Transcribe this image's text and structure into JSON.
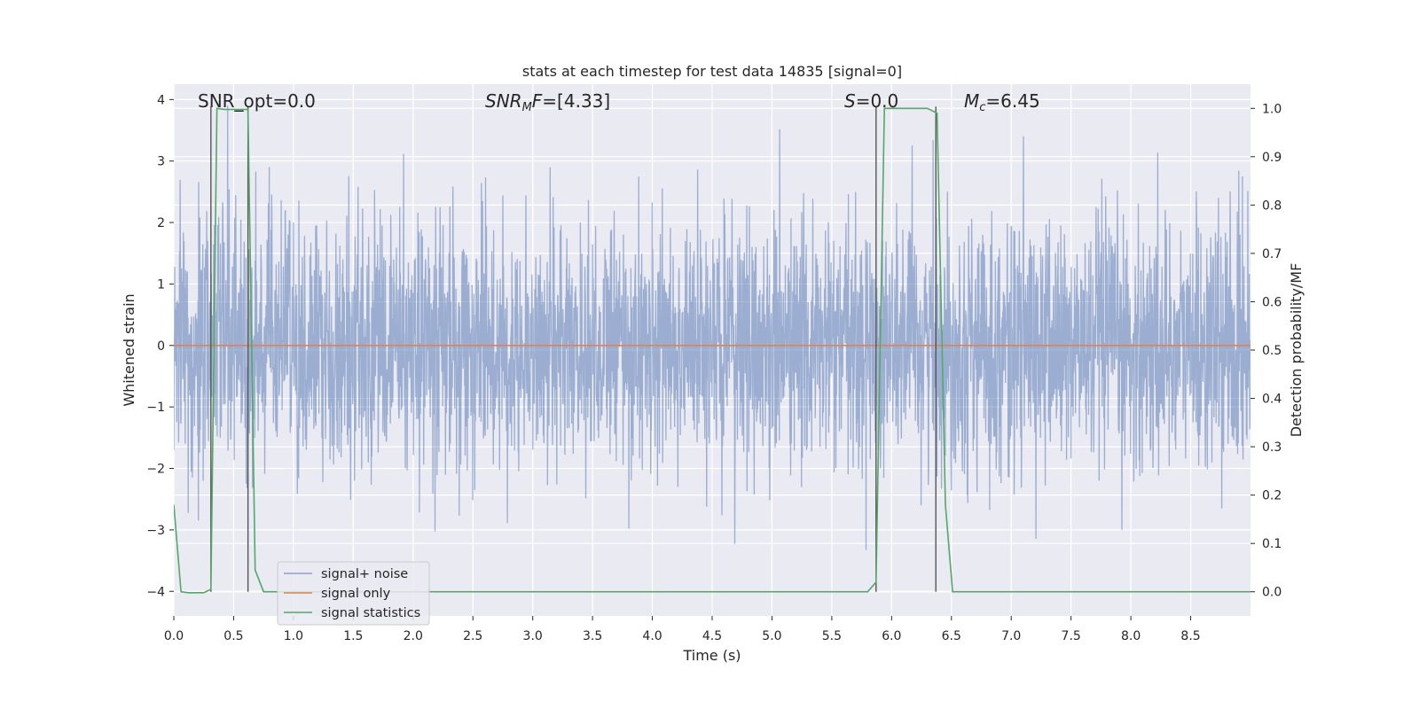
{
  "chart_data": {
    "type": "line",
    "title": "stats at each timestep for test data 14835 [signal=0]",
    "xlabel": "Time (s)",
    "ylabel": "Whitened strain",
    "y2label": "Detection probability/MF",
    "xlim": [
      0,
      9.0
    ],
    "ylim": [
      -4.4,
      4.25
    ],
    "y2lim": [
      -0.05,
      1.05
    ],
    "x_ticks": [
      0.0,
      0.5,
      1.0,
      1.5,
      2.0,
      2.5,
      3.0,
      3.5,
      4.0,
      4.5,
      5.0,
      5.5,
      6.0,
      6.5,
      7.0,
      7.5,
      8.0,
      8.5
    ],
    "x_tick_labels": [
      "0.0",
      "0.5",
      "1.0",
      "1.5",
      "2.0",
      "2.5",
      "3.0",
      "3.5",
      "4.0",
      "4.5",
      "5.0",
      "5.5",
      "6.0",
      "6.5",
      "7.0",
      "7.5",
      "8.0",
      "8.5"
    ],
    "y_ticks": [
      -4,
      -3,
      -2,
      -1,
      0,
      1,
      2,
      3,
      4
    ],
    "y_tick_labels": [
      "−4",
      "−3",
      "−2",
      "−1",
      "0",
      "1",
      "2",
      "3",
      "4"
    ],
    "y2_ticks": [
      0.0,
      0.1,
      0.2,
      0.3,
      0.4,
      0.5,
      0.6,
      0.7,
      0.8,
      0.9,
      1.0
    ],
    "y2_tick_labels": [
      "0.0",
      "0.1",
      "0.2",
      "0.3",
      "0.4",
      "0.5",
      "0.6",
      "0.7",
      "0.8",
      "0.9",
      "1.0"
    ],
    "grid": true,
    "legend_position": "lower-left",
    "colors": {
      "background": "#eaeaf2",
      "grid": "#ffffff",
      "noise": "#4c72b0",
      "signal_only": "#dd8452",
      "statistics": "#55a868",
      "vline": "#555555"
    },
    "series": [
      {
        "name": "signal+ noise",
        "description_type": "whitened noise",
        "amplitude_typical": 1.0,
        "x_range": [
          0,
          9.0
        ],
        "n_points": 3600
      },
      {
        "name": "signal only",
        "x": [
          0,
          9.0
        ],
        "y": [
          0,
          0
        ]
      },
      {
        "name": "signal statistics",
        "axis": "right",
        "x": [
          0.0,
          0.06,
          0.12,
          0.25,
          0.31,
          0.36,
          0.42,
          0.55,
          0.62,
          0.68,
          0.75,
          1.0,
          5.5,
          5.8,
          5.87,
          5.94,
          6.0,
          6.3,
          6.38,
          6.45,
          6.51,
          6.6,
          9.0
        ],
        "y": [
          0.18,
          0.0,
          -0.002,
          -0.002,
          0.005,
          1.0,
          0.998,
          0.998,
          0.998,
          0.045,
          0.0,
          0.0,
          0.0,
          0.0,
          0.02,
          1.0,
          1.0,
          1.0,
          0.99,
          0.18,
          0.0,
          0.0,
          0.0
        ]
      }
    ],
    "vertical_lines": [
      0.31,
      0.62,
      5.87,
      6.37
    ],
    "annotations": [
      {
        "text": "SNR_opt=0.0",
        "x": 0.2
      },
      {
        "text": "SNR_MF=[4.33]",
        "x": 2.6
      },
      {
        "text": "S=0.0",
        "x": 5.6
      },
      {
        "text": "M_c=6.45",
        "x": 6.6
      }
    ],
    "legend": [
      "signal+ noise",
      "signal only",
      "signal statistics"
    ]
  }
}
